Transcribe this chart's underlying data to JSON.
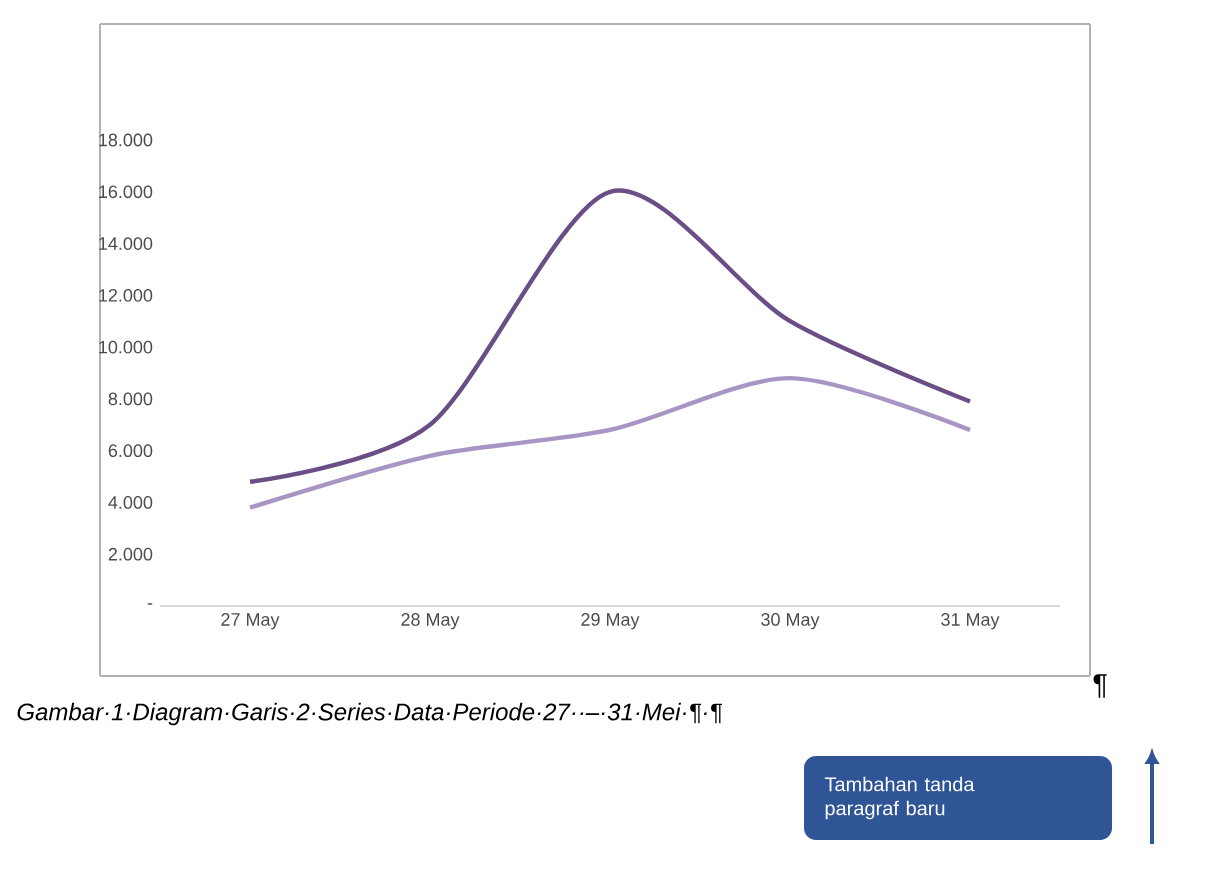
{
  "chart_data": {
    "type": "line",
    "categories": [
      "27 May",
      "28 May",
      "29 May",
      "30 May",
      "31 May"
    ],
    "series": [
      {
        "color": "#6a4f86",
        "values": [
          4800,
          7000,
          16000,
          11000,
          7900
        ]
      },
      {
        "color": "#a995c4",
        "values": [
          3800,
          5800,
          6800,
          8800,
          6800
        ]
      }
    ],
    "ylim": [
      0,
      18000
    ],
    "yticks": [
      {
        "value": 0,
        "label": "-"
      },
      {
        "value": 2000,
        "label": "2.000"
      },
      {
        "value": 4000,
        "label": "4.000"
      },
      {
        "value": 6000,
        "label": "6.000"
      },
      {
        "value": 8000,
        "label": "8.000"
      },
      {
        "value": 10000,
        "label": "10.000"
      },
      {
        "value": 12000,
        "label": "12.000"
      },
      {
        "value": 14000,
        "label": "14.000"
      },
      {
        "value": 16000,
        "label": "16.000"
      },
      {
        "value": 18000,
        "label": "18.000"
      }
    ],
    "grid": false,
    "marker": "none",
    "line_style": "solid",
    "annotations": [
      "¶",
      "Gambar·1·Diagram·Garis·2·Series·Data·Periode·27··–·31·Mei·¶·¶",
      "Tambahan tanda paragraf baru"
    ]
  }
}
